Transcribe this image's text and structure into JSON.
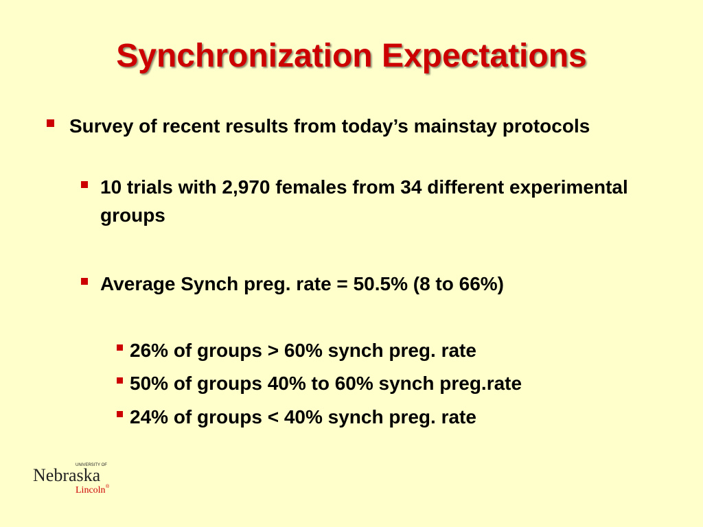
{
  "slide": {
    "title": "Synchronization Expectations",
    "bullets": [
      {
        "text": "Survey of recent results from today’s mainstay protocols"
      },
      {
        "text": "10 trials with 2,970 females from 34 different experimental groups"
      },
      {
        "text": "Average Synch preg. rate = 50.5% (8 to 66%)"
      },
      {
        "text": "26% of groups > 60% synch preg. rate"
      },
      {
        "text": "50% of groups 40% to 60% synch preg.rate"
      },
      {
        "text": "24% of groups < 40% synch preg. rate"
      }
    ],
    "logo": {
      "university_of": "UNIVERSITY OF",
      "name": "Nebraska",
      "campus": "Lincoln",
      "mark": "®"
    }
  },
  "colors": {
    "background": "#FFFFCC",
    "title": "#CC0000",
    "bullet_marker": "#CC0000",
    "body_text": "#000000"
  }
}
